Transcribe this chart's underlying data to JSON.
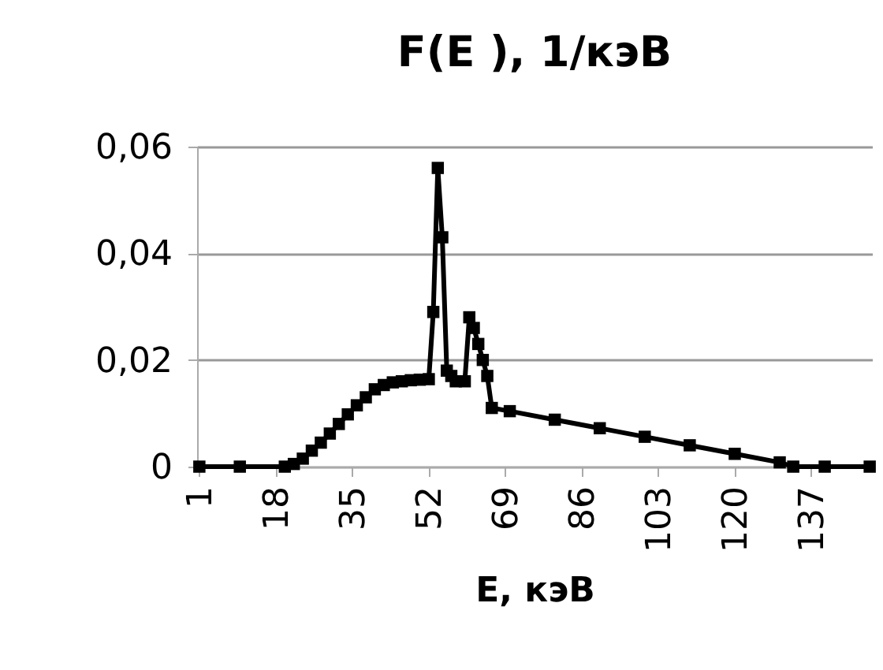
{
  "chart_data": {
    "type": "line",
    "title": "F(E ), 1/кэВ",
    "xlabel": "E, кэВ",
    "x": [
      1,
      10,
      20,
      22,
      24,
      26,
      28,
      30,
      32,
      34,
      36,
      38,
      40,
      42,
      44,
      46,
      48,
      50,
      52,
      53,
      54,
      55,
      56,
      57,
      58,
      60,
      61,
      62,
      63,
      64,
      65,
      66,
      70,
      80,
      90,
      100,
      110,
      120,
      130,
      133,
      140,
      150
    ],
    "series": [
      {
        "color": "#000000",
        "values": [
          0,
          0,
          0,
          0.0005,
          0.0015,
          0.003,
          0.0045,
          0.0062,
          0.008,
          0.0098,
          0.0115,
          0.013,
          0.0145,
          0.0153,
          0.0158,
          0.016,
          0.0162,
          0.0163,
          0.0164,
          0.029,
          0.056,
          0.043,
          0.018,
          0.017,
          0.016,
          0.016,
          0.028,
          0.026,
          0.023,
          0.02,
          0.017,
          0.011,
          0.0104,
          0.0088,
          0.0072,
          0.0056,
          0.004,
          0.0024,
          0.0008,
          0,
          0,
          0
        ]
      }
    ],
    "xlim": [
      0.5,
      150.5
    ],
    "xticks": [
      1,
      18,
      35,
      52,
      69,
      86,
      103,
      120,
      137
    ],
    "ylim": [
      0,
      0.06
    ],
    "yticks": [
      0,
      {
        "value": 0.02,
        "label": "0,02"
      },
      {
        "value": 0.04,
        "label": "0,04"
      },
      {
        "value": 0.06,
        "label": "0,06"
      }
    ],
    "grid": "y",
    "marker": "square",
    "line_style": "solid",
    "legend": false
  }
}
